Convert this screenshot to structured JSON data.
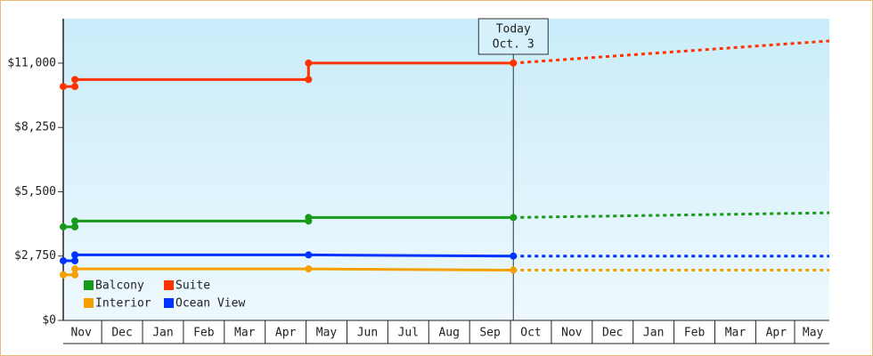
{
  "chart_data": {
    "type": "line",
    "xlim": [
      0.06,
      18.8
    ],
    "xticks": [
      {
        "value": 0.5,
        "label": "Nov"
      },
      {
        "value": 1.5,
        "label": "Dec"
      },
      {
        "value": 2.5,
        "label": "Jan"
      },
      {
        "value": 3.5,
        "label": "Feb"
      },
      {
        "value": 4.5,
        "label": "Mar"
      },
      {
        "value": 5.5,
        "label": "Apr"
      },
      {
        "value": 6.5,
        "label": "May"
      },
      {
        "value": 7.5,
        "label": "Jun"
      },
      {
        "value": 8.5,
        "label": "Jul"
      },
      {
        "value": 9.5,
        "label": "Aug"
      },
      {
        "value": 10.5,
        "label": "Sep"
      },
      {
        "value": 11.5,
        "label": "Oct"
      },
      {
        "value": 12.5,
        "label": "Nov"
      },
      {
        "value": 13.5,
        "label": "Dec"
      },
      {
        "value": 14.5,
        "label": "Jan"
      },
      {
        "value": 15.5,
        "label": "Feb"
      },
      {
        "value": 16.5,
        "label": "Mar"
      },
      {
        "value": 17.5,
        "label": "Apr"
      },
      {
        "value": 18.4,
        "label": "May"
      }
    ],
    "ylim": [
      0,
      12900
    ],
    "yticks": [
      {
        "value": 0,
        "label": "$0"
      },
      {
        "value": 2750,
        "label": "$2,750"
      },
      {
        "value": 5500,
        "label": "$5,500"
      },
      {
        "value": 8250,
        "label": "$8,250"
      },
      {
        "value": 11000,
        "label": "$11,000"
      }
    ],
    "today": {
      "x": 11.07,
      "label": [
        "Today",
        "Oct. 3"
      ]
    },
    "series": [
      {
        "name": "Balcony",
        "color": "#17991a",
        "x": [
          0.06,
          0.345,
          0.345,
          6.06,
          6.06,
          11.07
        ],
        "values": [
          4000,
          4000,
          4250,
          4250,
          4400,
          4400
        ],
        "forecast_x": [
          11.07,
          18.8
        ],
        "forecast_values": [
          4400,
          4600
        ]
      },
      {
        "name": "Suite",
        "color": "#ff3300",
        "x": [
          0.06,
          0.345,
          0.345,
          6.06,
          6.06,
          11.07
        ],
        "values": [
          10000,
          10000,
          10300,
          10300,
          11000,
          11000
        ],
        "forecast_x": [
          11.07,
          18.8
        ],
        "forecast_values": [
          11000,
          11950
        ]
      },
      {
        "name": "Interior",
        "color": "#f5a000",
        "x": [
          0.06,
          0.345,
          0.345,
          6.06,
          11.07
        ],
        "values": [
          1950,
          1950,
          2200,
          2200,
          2150
        ],
        "forecast_x": [
          11.07,
          18.8
        ],
        "forecast_values": [
          2150,
          2150
        ]
      },
      {
        "name": "Ocean View",
        "color": "#0033ff",
        "x": [
          0.06,
          0.345,
          0.345,
          6.06,
          11.07
        ],
        "values": [
          2550,
          2550,
          2800,
          2800,
          2750
        ],
        "forecast_x": [
          11.07,
          18.8
        ],
        "forecast_values": [
          2750,
          2750
        ]
      }
    ]
  }
}
